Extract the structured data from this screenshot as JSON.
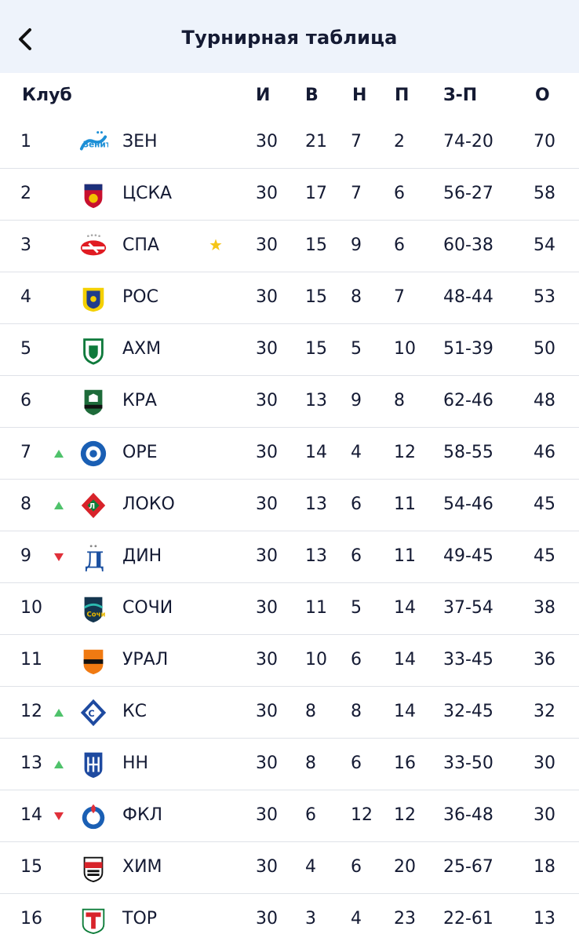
{
  "header": {
    "back_icon": "chevron-left-icon",
    "title": "Турнирная таблица"
  },
  "table": {
    "columns": {
      "club": "Клуб",
      "games": "И",
      "wins": "В",
      "draws": "Н",
      "losses": "П",
      "goals": "З-П",
      "points": "О"
    },
    "rows": [
      {
        "pos": "1",
        "trend": "",
        "logo": "zenit-logo",
        "name": "ЗЕН",
        "star": false,
        "games": "30",
        "wins": "21",
        "draws": "7",
        "losses": "2",
        "goals": "74-20",
        "points": "70"
      },
      {
        "pos": "2",
        "trend": "",
        "logo": "cska-logo",
        "name": "ЦСКА",
        "star": false,
        "games": "30",
        "wins": "17",
        "draws": "7",
        "losses": "6",
        "goals": "56-27",
        "points": "58"
      },
      {
        "pos": "3",
        "trend": "",
        "logo": "spartak-logo",
        "name": "СПА",
        "star": true,
        "games": "30",
        "wins": "15",
        "draws": "9",
        "losses": "6",
        "goals": "60-38",
        "points": "54"
      },
      {
        "pos": "4",
        "trend": "",
        "logo": "rostov-logo",
        "name": "РОС",
        "star": false,
        "games": "30",
        "wins": "15",
        "draws": "8",
        "losses": "7",
        "goals": "48-44",
        "points": "53"
      },
      {
        "pos": "5",
        "trend": "",
        "logo": "akhmat-logo",
        "name": "АХМ",
        "star": false,
        "games": "30",
        "wins": "15",
        "draws": "5",
        "losses": "10",
        "goals": "51-39",
        "points": "50"
      },
      {
        "pos": "6",
        "trend": "",
        "logo": "krasnodar-logo",
        "name": "КРА",
        "star": false,
        "games": "30",
        "wins": "13",
        "draws": "9",
        "losses": "8",
        "goals": "62-46",
        "points": "48"
      },
      {
        "pos": "7",
        "trend": "up",
        "logo": "orenburg-logo",
        "name": "ОРЕ",
        "star": false,
        "games": "30",
        "wins": "14",
        "draws": "4",
        "losses": "12",
        "goals": "58-55",
        "points": "46"
      },
      {
        "pos": "8",
        "trend": "up",
        "logo": "lokomotiv-logo",
        "name": "ЛОКО",
        "star": false,
        "games": "30",
        "wins": "13",
        "draws": "6",
        "losses": "11",
        "goals": "54-46",
        "points": "45"
      },
      {
        "pos": "9",
        "trend": "down",
        "logo": "dynamo-logo",
        "name": "ДИН",
        "star": false,
        "games": "30",
        "wins": "13",
        "draws": "6",
        "losses": "11",
        "goals": "49-45",
        "points": "45"
      },
      {
        "pos": "10",
        "trend": "",
        "logo": "sochi-logo",
        "name": "СОЧИ",
        "star": false,
        "games": "30",
        "wins": "11",
        "draws": "5",
        "losses": "14",
        "goals": "37-54",
        "points": "38"
      },
      {
        "pos": "11",
        "trend": "",
        "logo": "ural-logo",
        "name": "УРАЛ",
        "star": false,
        "games": "30",
        "wins": "10",
        "draws": "6",
        "losses": "14",
        "goals": "33-45",
        "points": "36"
      },
      {
        "pos": "12",
        "trend": "up",
        "logo": "krylia-sovetov-logo",
        "name": "КС",
        "star": false,
        "games": "30",
        "wins": "8",
        "draws": "8",
        "losses": "14",
        "goals": "32-45",
        "points": "32"
      },
      {
        "pos": "13",
        "trend": "up",
        "logo": "nizhny-novgorod-logo",
        "name": "НН",
        "star": false,
        "games": "30",
        "wins": "8",
        "draws": "6",
        "losses": "16",
        "goals": "33-50",
        "points": "30"
      },
      {
        "pos": "14",
        "trend": "down",
        "logo": "fakel-logo",
        "name": "ФКЛ",
        "star": false,
        "games": "30",
        "wins": "6",
        "draws": "12",
        "losses": "12",
        "goals": "36-48",
        "points": "30"
      },
      {
        "pos": "15",
        "trend": "",
        "logo": "khimki-logo",
        "name": "ХИМ",
        "star": false,
        "games": "30",
        "wins": "4",
        "draws": "6",
        "losses": "20",
        "goals": "25-67",
        "points": "18"
      },
      {
        "pos": "16",
        "trend": "",
        "logo": "torpedo-logo",
        "name": "ТОР",
        "star": false,
        "games": "30",
        "wins": "3",
        "draws": "4",
        "losses": "23",
        "goals": "22-61",
        "points": "13"
      }
    ]
  },
  "colors": {
    "text": "#141a33",
    "header_bg": "#eef3fb",
    "divider": "#dfe2e8",
    "trend_up": "#4fc26b",
    "trend_down": "#e0303a",
    "star": "#f5c518"
  }
}
